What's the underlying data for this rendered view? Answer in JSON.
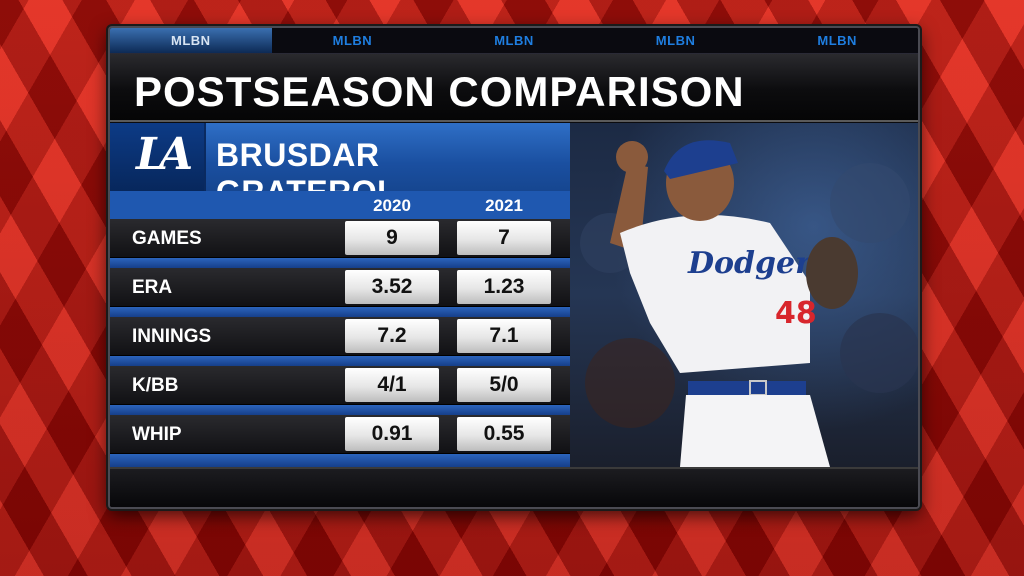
{
  "tabs": [
    "MLBN",
    "MLBN",
    "MLBN",
    "MLBN",
    "MLBN"
  ],
  "title": "POSTSEASON COMPARISON",
  "team_logo": "LA",
  "player_name": "BRUSDAR GRATEROL",
  "years": [
    "2020",
    "2021"
  ],
  "stats": [
    {
      "label": "GAMES",
      "v2020": "9",
      "v2021": "7"
    },
    {
      "label": "ERA",
      "v2020": "3.52",
      "v2021": "1.23"
    },
    {
      "label": "INNINGS",
      "v2020": "7.2",
      "v2021": "7.1"
    },
    {
      "label": "K/BB",
      "v2020": "4/1",
      "v2021": "5/0"
    },
    {
      "label": "WHIP",
      "v2020": "0.91",
      "v2021": "0.55"
    }
  ],
  "jersey_text": "Dodgers",
  "jersey_number": "48",
  "colors": {
    "brand_blue": "#1f58b0",
    "background_red": "#b4120e"
  }
}
